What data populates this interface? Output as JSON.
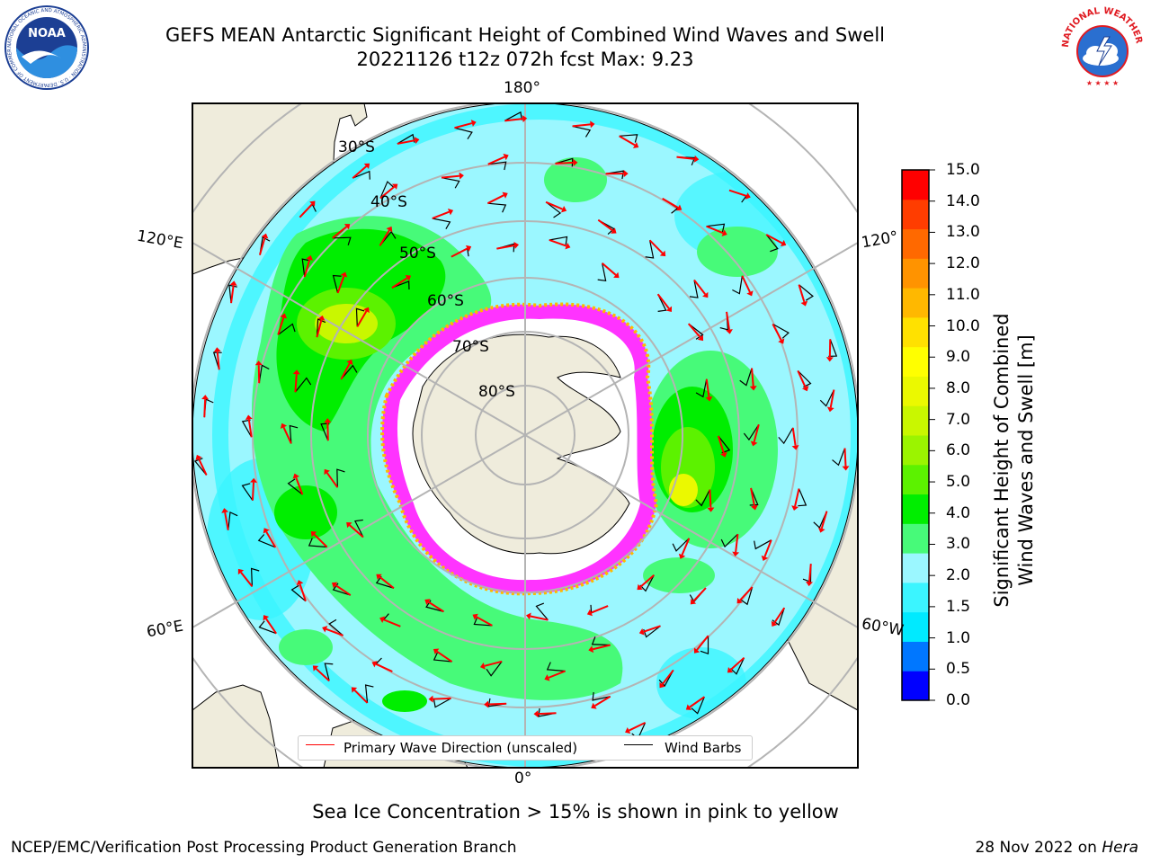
{
  "header": {
    "title_line1": "GEFS MEAN Antarctic Significant Height of Combined Wind Waves and Swell",
    "title_line2": "20221126 t12z 072h fcst   Max: 9.23"
  },
  "logos": {
    "left": {
      "icon": "noaa-logo",
      "text": "NOAA",
      "ring_text": "NATIONAL OCEANIC AND ATMOSPHERIC ADMINISTRATION · U.S. DEPARTMENT OF COMMERCE"
    },
    "right": {
      "icon": "nws-logo",
      "ring_text": "NATIONAL WEATHER SERVICE"
    }
  },
  "map": {
    "projection": "south-polar-stereographic",
    "lon_labels": {
      "top": "180°",
      "bottom": "0°",
      "left_upper": "120°E",
      "left_lower": "60°E",
      "right_upper": "120°",
      "right_lower": "60°W"
    },
    "lat_labels": [
      "30°S",
      "40°S",
      "50°S",
      "60°S",
      "70°S",
      "80°S"
    ],
    "colors": {
      "land": "#efecdc",
      "ocean_light": "#9bf7ff",
      "grid": "#b4b4b4",
      "wave_arrow": "#ff0000",
      "wind_barb": "#000000",
      "sea_ice": "#ff33ff"
    }
  },
  "colorbar": {
    "label": "Significant Height of Combined Wind Waves and Swell [m]",
    "label_lines": [
      "Significant Height of Combined",
      "Wind Waves and Swell [m]"
    ],
    "ticks": [
      "15.0",
      "14.0",
      "13.0",
      "12.0",
      "11.0",
      "10.0",
      "9.0",
      "8.0",
      "7.0",
      "6.0",
      "5.0",
      "4.0",
      "3.0",
      "2.0",
      "1.5",
      "1.0",
      "0.5",
      "0.0"
    ],
    "colors_bottom_to_top": [
      "#0000ff",
      "#0077ff",
      "#00eaff",
      "#3bf5ff",
      "#9bf7ff",
      "#47fa79",
      "#00ee00",
      "#5cf200",
      "#9bf400",
      "#c9f700",
      "#ebf900",
      "#ffff00",
      "#ffe100",
      "#ffb800",
      "#ff9300",
      "#ff6900",
      "#ff3d00",
      "#ff0000"
    ]
  },
  "legend": {
    "items": [
      {
        "label": "Primary Wave Direction (unscaled)",
        "color": "#ff0000"
      },
      {
        "label": "Wind Barbs",
        "color": "#000000"
      }
    ]
  },
  "ice_note": "Sea Ice Concentration > 15% is shown in pink to yellow",
  "footer": {
    "left": "NCEP/EMC/Verification Post Processing Product Generation Branch",
    "date": "28 Nov 2022 on ",
    "machine": "Hera"
  }
}
